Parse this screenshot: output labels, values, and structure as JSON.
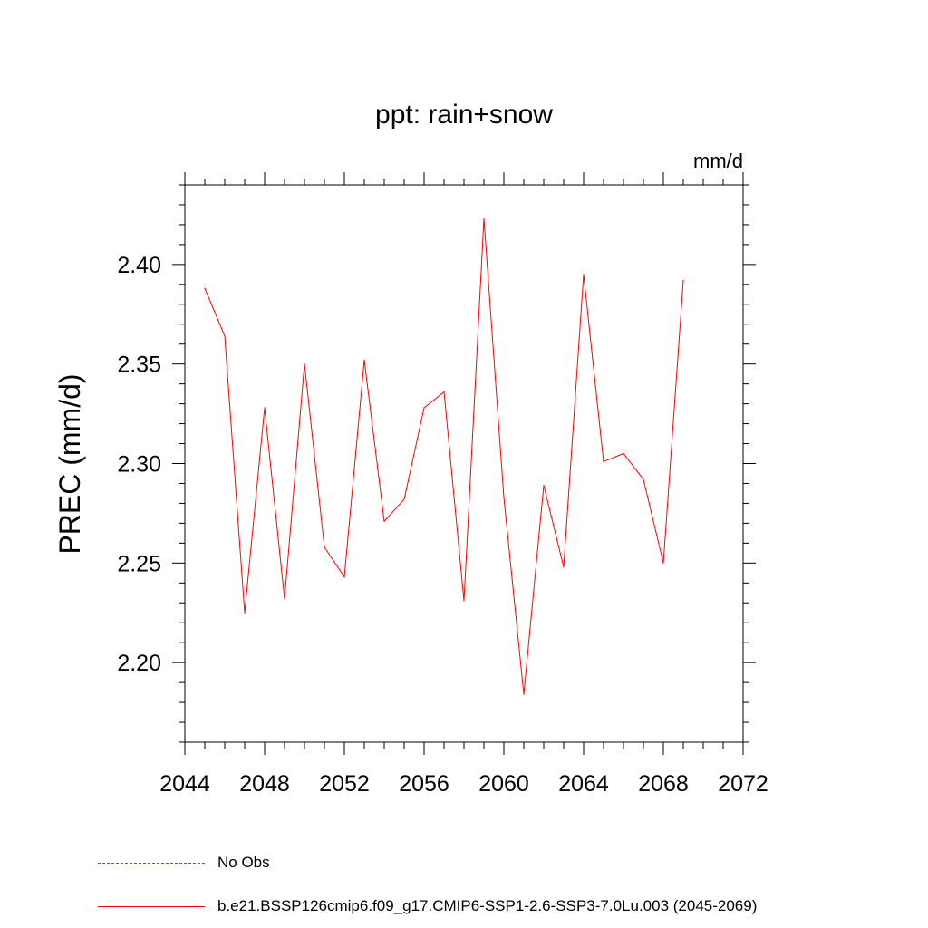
{
  "chart_data": {
    "type": "line",
    "title": "ppt: rain+snow",
    "units_label": "mm/d",
    "xlabel": "",
    "ylabel": "PREC  (mm/d)",
    "xlim": [
      2044,
      2072
    ],
    "ylim": [
      2.16,
      2.44
    ],
    "x_ticks": [
      2044,
      2048,
      2052,
      2056,
      2060,
      2064,
      2068,
      2072
    ],
    "x_tick_labels": [
      "2044",
      "2048",
      "2052",
      "2056",
      "2060",
      "2064",
      "2068",
      "2072"
    ],
    "y_ticks": [
      2.2,
      2.25,
      2.3,
      2.35,
      2.4
    ],
    "y_tick_labels": [
      "2.20",
      "2.25",
      "2.30",
      "2.35",
      "2.40"
    ],
    "grid": false,
    "legend_position": "bottom-left",
    "x": [
      2045,
      2046,
      2047,
      2048,
      2049,
      2050,
      2051,
      2052,
      2053,
      2054,
      2055,
      2056,
      2057,
      2058,
      2059,
      2060,
      2061,
      2062,
      2063,
      2064,
      2065,
      2066,
      2067,
      2068,
      2069
    ],
    "series": [
      {
        "name": "b.e21.BSSP126cmip6.f09_g17.CMIP6-SSP1-2.6-SSP3-7.0Lu.003 (2045-2069)",
        "color": "#ff0000",
        "style": "solid",
        "values": [
          2.388,
          2.364,
          2.225,
          2.328,
          2.232,
          2.35,
          2.258,
          2.243,
          2.352,
          2.271,
          2.282,
          2.328,
          2.336,
          2.231,
          2.423,
          2.283,
          2.184,
          2.289,
          2.248,
          2.395,
          2.301,
          2.305,
          2.292,
          2.25,
          2.392
        ]
      }
    ]
  },
  "legend": {
    "entries": [
      {
        "label": "No Obs",
        "color": "#5050c8",
        "style": "dashed"
      },
      {
        "label": "b.e21.BSSP126cmip6.f09_g17.CMIP6-SSP1-2.6-SSP3-7.0Lu.003 (2045-2069)",
        "color": "#ff0000",
        "style": "solid"
      }
    ]
  }
}
